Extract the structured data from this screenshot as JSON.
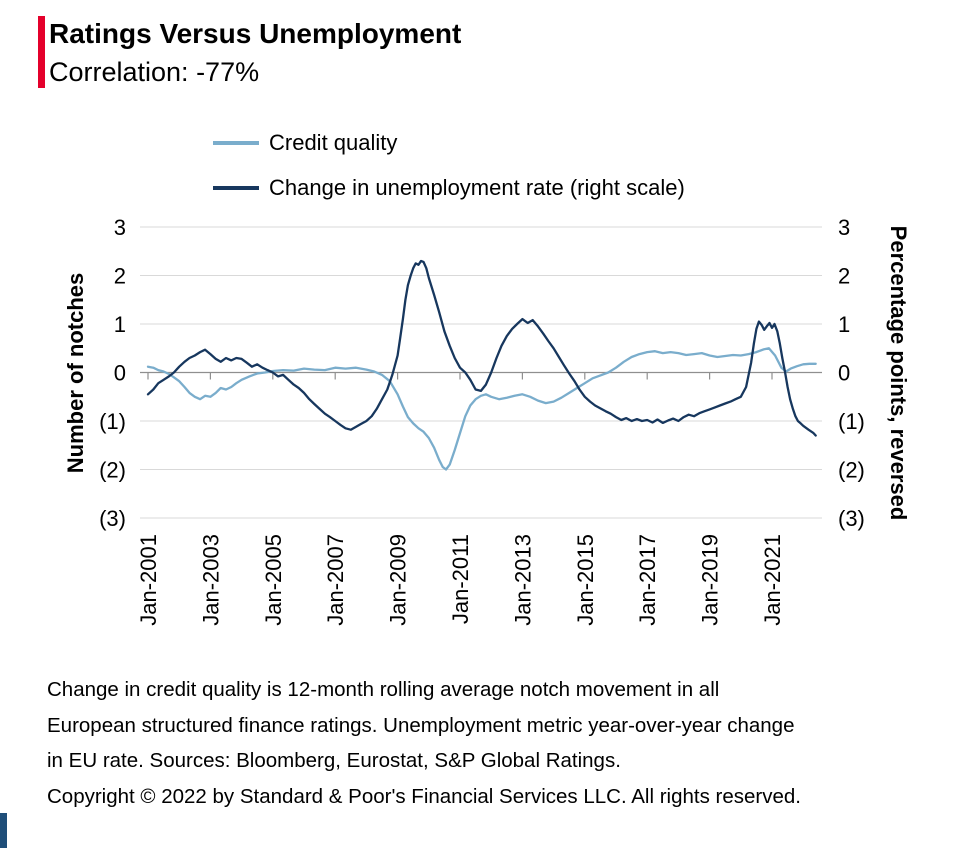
{
  "accent_color": "#e4002b",
  "bottom_accent_color": "#1f4e79",
  "header": {
    "title": "Ratings Versus Unemployment",
    "subtitle": "Correlation: -77%"
  },
  "chart_data": {
    "type": "line",
    "title": "Ratings Versus Unemployment",
    "subtitle": "Correlation: -77%",
    "left_axis_label": "Number of notches",
    "right_axis_label": "Percentage points, reversed",
    "right_axis_reversed": true,
    "grid": true,
    "legend_position": "top",
    "x_range": [
      2000.8,
      2022.6
    ],
    "y_range": [
      -3,
      3
    ],
    "y_ticks": [
      3,
      2,
      1,
      0,
      -1,
      -2,
      -3
    ],
    "y_tick_labels": [
      "3",
      "2",
      "1",
      "0",
      "(1)",
      "(2)",
      "(3)"
    ],
    "x_tick_years": [
      2001,
      2003,
      2005,
      2007,
      2009,
      2011,
      2013,
      2015,
      2017,
      2019,
      2021
    ],
    "x_tick_labels": [
      "Jan-2001",
      "Jan-2003",
      "Jan-2005",
      "Jan-2007",
      "Jan-2009",
      "Jan-2011",
      "Jan-2013",
      "Jan-2015",
      "Jan-2017",
      "Jan-2019",
      "Jan-2021"
    ],
    "series": [
      {
        "name": "Credit quality",
        "color": "#7aadcc",
        "axis": "left",
        "points": [
          [
            2001.0,
            0.12
          ],
          [
            2001.17,
            0.1
          ],
          [
            2001.33,
            0.05
          ],
          [
            2001.5,
            0.02
          ],
          [
            2001.67,
            -0.03
          ],
          [
            2001.83,
            -0.1
          ],
          [
            2002.0,
            -0.18
          ],
          [
            2002.17,
            -0.3
          ],
          [
            2002.33,
            -0.42
          ],
          [
            2002.5,
            -0.5
          ],
          [
            2002.67,
            -0.55
          ],
          [
            2002.83,
            -0.48
          ],
          [
            2003.0,
            -0.5
          ],
          [
            2003.17,
            -0.42
          ],
          [
            2003.33,
            -0.32
          ],
          [
            2003.5,
            -0.35
          ],
          [
            2003.67,
            -0.3
          ],
          [
            2003.83,
            -0.22
          ],
          [
            2004.0,
            -0.15
          ],
          [
            2004.25,
            -0.08
          ],
          [
            2004.5,
            -0.02
          ],
          [
            2004.75,
            0.0
          ],
          [
            2005.0,
            0.03
          ],
          [
            2005.33,
            0.05
          ],
          [
            2005.67,
            0.04
          ],
          [
            2006.0,
            0.08
          ],
          [
            2006.33,
            0.06
          ],
          [
            2006.67,
            0.05
          ],
          [
            2007.0,
            0.1
          ],
          [
            2007.33,
            0.08
          ],
          [
            2007.67,
            0.1
          ],
          [
            2008.0,
            0.06
          ],
          [
            2008.25,
            0.02
          ],
          [
            2008.5,
            -0.05
          ],
          [
            2008.75,
            -0.18
          ],
          [
            2009.0,
            -0.45
          ],
          [
            2009.17,
            -0.7
          ],
          [
            2009.33,
            -0.92
          ],
          [
            2009.5,
            -1.05
          ],
          [
            2009.67,
            -1.15
          ],
          [
            2009.83,
            -1.22
          ],
          [
            2010.0,
            -1.35
          ],
          [
            2010.17,
            -1.55
          ],
          [
            2010.33,
            -1.8
          ],
          [
            2010.45,
            -1.95
          ],
          [
            2010.55,
            -2.0
          ],
          [
            2010.67,
            -1.9
          ],
          [
            2010.83,
            -1.6
          ],
          [
            2011.0,
            -1.25
          ],
          [
            2011.17,
            -0.9
          ],
          [
            2011.33,
            -0.68
          ],
          [
            2011.5,
            -0.55
          ],
          [
            2011.67,
            -0.48
          ],
          [
            2011.83,
            -0.45
          ],
          [
            2012.0,
            -0.5
          ],
          [
            2012.25,
            -0.55
          ],
          [
            2012.5,
            -0.52
          ],
          [
            2012.75,
            -0.48
          ],
          [
            2013.0,
            -0.45
          ],
          [
            2013.25,
            -0.5
          ],
          [
            2013.5,
            -0.58
          ],
          [
            2013.75,
            -0.63
          ],
          [
            2014.0,
            -0.6
          ],
          [
            2014.25,
            -0.52
          ],
          [
            2014.5,
            -0.42
          ],
          [
            2014.75,
            -0.32
          ],
          [
            2015.0,
            -0.22
          ],
          [
            2015.25,
            -0.12
          ],
          [
            2015.5,
            -0.06
          ],
          [
            2015.75,
            0.0
          ],
          [
            2016.0,
            0.1
          ],
          [
            2016.25,
            0.22
          ],
          [
            2016.5,
            0.32
          ],
          [
            2016.75,
            0.38
          ],
          [
            2017.0,
            0.42
          ],
          [
            2017.25,
            0.44
          ],
          [
            2017.5,
            0.4
          ],
          [
            2017.75,
            0.42
          ],
          [
            2018.0,
            0.4
          ],
          [
            2018.25,
            0.36
          ],
          [
            2018.5,
            0.38
          ],
          [
            2018.75,
            0.4
          ],
          [
            2019.0,
            0.35
          ],
          [
            2019.25,
            0.32
          ],
          [
            2019.5,
            0.34
          ],
          [
            2019.75,
            0.36
          ],
          [
            2020.0,
            0.35
          ],
          [
            2020.25,
            0.38
          ],
          [
            2020.5,
            0.42
          ],
          [
            2020.75,
            0.48
          ],
          [
            2020.9,
            0.5
          ],
          [
            2021.1,
            0.35
          ],
          [
            2021.3,
            0.1
          ],
          [
            2021.45,
            0.02
          ],
          [
            2021.6,
            0.08
          ],
          [
            2021.8,
            0.13
          ],
          [
            2022.0,
            0.17
          ],
          [
            2022.2,
            0.18
          ],
          [
            2022.4,
            0.18
          ]
        ]
      },
      {
        "name": "Change in unemployment rate (right scale)",
        "color": "#17375e",
        "axis": "right_reversed",
        "points": [
          [
            2001.0,
            -0.45
          ],
          [
            2001.17,
            -0.35
          ],
          [
            2001.33,
            -0.22
          ],
          [
            2001.5,
            -0.15
          ],
          [
            2001.67,
            -0.08
          ],
          [
            2001.83,
            0.0
          ],
          [
            2002.0,
            0.12
          ],
          [
            2002.17,
            0.22
          ],
          [
            2002.33,
            0.3
          ],
          [
            2002.5,
            0.35
          ],
          [
            2002.67,
            0.42
          ],
          [
            2002.83,
            0.47
          ],
          [
            2003.0,
            0.38
          ],
          [
            2003.17,
            0.28
          ],
          [
            2003.33,
            0.22
          ],
          [
            2003.5,
            0.3
          ],
          [
            2003.67,
            0.25
          ],
          [
            2003.83,
            0.3
          ],
          [
            2004.0,
            0.28
          ],
          [
            2004.17,
            0.2
          ],
          [
            2004.33,
            0.12
          ],
          [
            2004.5,
            0.17
          ],
          [
            2004.67,
            0.1
          ],
          [
            2004.83,
            0.05
          ],
          [
            2005.0,
            0.0
          ],
          [
            2005.17,
            -0.08
          ],
          [
            2005.33,
            -0.05
          ],
          [
            2005.5,
            -0.15
          ],
          [
            2005.67,
            -0.25
          ],
          [
            2005.83,
            -0.32
          ],
          [
            2006.0,
            -0.42
          ],
          [
            2006.17,
            -0.55
          ],
          [
            2006.33,
            -0.65
          ],
          [
            2006.5,
            -0.75
          ],
          [
            2006.67,
            -0.85
          ],
          [
            2006.83,
            -0.92
          ],
          [
            2007.0,
            -1.0
          ],
          [
            2007.17,
            -1.08
          ],
          [
            2007.33,
            -1.15
          ],
          [
            2007.5,
            -1.18
          ],
          [
            2007.67,
            -1.12
          ],
          [
            2007.83,
            -1.06
          ],
          [
            2008.0,
            -1.0
          ],
          [
            2008.17,
            -0.9
          ],
          [
            2008.33,
            -0.75
          ],
          [
            2008.5,
            -0.55
          ],
          [
            2008.67,
            -0.35
          ],
          [
            2008.83,
            -0.05
          ],
          [
            2009.0,
            0.35
          ],
          [
            2009.08,
            0.7
          ],
          [
            2009.17,
            1.1
          ],
          [
            2009.25,
            1.5
          ],
          [
            2009.33,
            1.8
          ],
          [
            2009.42,
            2.0
          ],
          [
            2009.5,
            2.15
          ],
          [
            2009.58,
            2.25
          ],
          [
            2009.67,
            2.22
          ],
          [
            2009.75,
            2.3
          ],
          [
            2009.83,
            2.28
          ],
          [
            2009.92,
            2.15
          ],
          [
            2010.0,
            1.95
          ],
          [
            2010.17,
            1.6
          ],
          [
            2010.33,
            1.25
          ],
          [
            2010.5,
            0.85
          ],
          [
            2010.67,
            0.55
          ],
          [
            2010.83,
            0.3
          ],
          [
            2011.0,
            0.1
          ],
          [
            2011.17,
            0.0
          ],
          [
            2011.33,
            -0.15
          ],
          [
            2011.5,
            -0.35
          ],
          [
            2011.67,
            -0.38
          ],
          [
            2011.83,
            -0.25
          ],
          [
            2012.0,
            0.0
          ],
          [
            2012.17,
            0.3
          ],
          [
            2012.33,
            0.55
          ],
          [
            2012.5,
            0.75
          ],
          [
            2012.67,
            0.9
          ],
          [
            2012.83,
            1.0
          ],
          [
            2013.0,
            1.1
          ],
          [
            2013.17,
            1.02
          ],
          [
            2013.33,
            1.08
          ],
          [
            2013.5,
            0.95
          ],
          [
            2013.67,
            0.8
          ],
          [
            2013.83,
            0.65
          ],
          [
            2014.0,
            0.5
          ],
          [
            2014.17,
            0.32
          ],
          [
            2014.33,
            0.15
          ],
          [
            2014.5,
            -0.02
          ],
          [
            2014.67,
            -0.18
          ],
          [
            2014.83,
            -0.35
          ],
          [
            2015.0,
            -0.5
          ],
          [
            2015.17,
            -0.6
          ],
          [
            2015.33,
            -0.68
          ],
          [
            2015.5,
            -0.74
          ],
          [
            2015.67,
            -0.8
          ],
          [
            2015.83,
            -0.85
          ],
          [
            2016.0,
            -0.92
          ],
          [
            2016.17,
            -0.98
          ],
          [
            2016.33,
            -0.94
          ],
          [
            2016.5,
            -1.0
          ],
          [
            2016.67,
            -0.96
          ],
          [
            2016.83,
            -1.0
          ],
          [
            2017.0,
            -0.98
          ],
          [
            2017.17,
            -1.03
          ],
          [
            2017.33,
            -0.97
          ],
          [
            2017.5,
            -1.04
          ],
          [
            2017.67,
            -0.99
          ],
          [
            2017.83,
            -0.95
          ],
          [
            2018.0,
            -1.0
          ],
          [
            2018.17,
            -0.92
          ],
          [
            2018.33,
            -0.87
          ],
          [
            2018.5,
            -0.9
          ],
          [
            2018.67,
            -0.84
          ],
          [
            2018.83,
            -0.8
          ],
          [
            2019.0,
            -0.76
          ],
          [
            2019.17,
            -0.72
          ],
          [
            2019.33,
            -0.68
          ],
          [
            2019.5,
            -0.64
          ],
          [
            2019.67,
            -0.6
          ],
          [
            2019.83,
            -0.55
          ],
          [
            2020.0,
            -0.5
          ],
          [
            2020.17,
            -0.3
          ],
          [
            2020.33,
            0.2
          ],
          [
            2020.42,
            0.6
          ],
          [
            2020.5,
            0.9
          ],
          [
            2020.58,
            1.05
          ],
          [
            2020.67,
            0.98
          ],
          [
            2020.75,
            0.88
          ],
          [
            2020.83,
            0.95
          ],
          [
            2020.92,
            1.02
          ],
          [
            2021.0,
            0.92
          ],
          [
            2021.08,
            1.0
          ],
          [
            2021.17,
            0.85
          ],
          [
            2021.25,
            0.6
          ],
          [
            2021.33,
            0.3
          ],
          [
            2021.42,
            0.0
          ],
          [
            2021.5,
            -0.3
          ],
          [
            2021.58,
            -0.55
          ],
          [
            2021.67,
            -0.75
          ],
          [
            2021.75,
            -0.9
          ],
          [
            2021.83,
            -1.0
          ],
          [
            2021.92,
            -1.05
          ],
          [
            2022.0,
            -1.1
          ],
          [
            2022.17,
            -1.18
          ],
          [
            2022.33,
            -1.25
          ],
          [
            2022.4,
            -1.3
          ]
        ]
      }
    ]
  },
  "footnote": {
    "lines": [
      "Change in credit quality is 12-month rolling average notch movement in all",
      "European structured finance ratings. Unemployment metric year-over-year change",
      "in EU rate. Sources: Bloomberg, Eurostat, S&P Global Ratings."
    ],
    "copyright": "Copyright © 2022 by Standard & Poor's Financial Services LLC. All rights reserved."
  }
}
